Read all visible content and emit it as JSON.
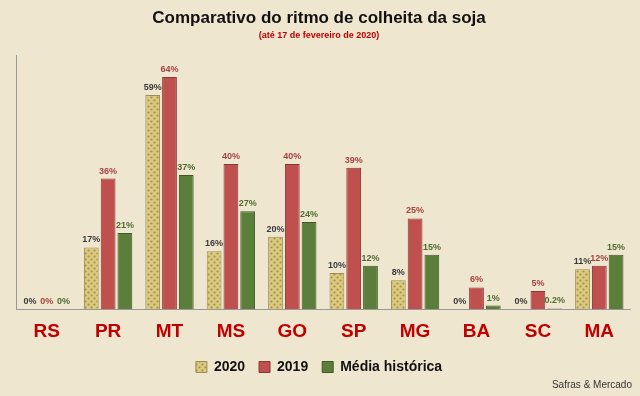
{
  "chart_data": {
    "type": "bar",
    "title": "Comparativo do ritmo de colheita da soja",
    "subtitle": "(até 17 de fevereiro de 2020)",
    "annotations": [
      "Safras & Mercado"
    ],
    "categories": [
      "RS",
      "PR",
      "MT",
      "MS",
      "GO",
      "SP",
      "MG",
      "BA",
      "SC",
      "MA"
    ],
    "series": [
      {
        "name": "2020",
        "color": "#dcc97a",
        "values": [
          0,
          17,
          59,
          16,
          20,
          10,
          8,
          0,
          0,
          11
        ],
        "value_labels": [
          "0%",
          "17%",
          "59%",
          "16%",
          "20%",
          "10%",
          "8%",
          "0%",
          "0%",
          "11%"
        ]
      },
      {
        "name": "2019",
        "color": "#c0504d",
        "values": [
          0,
          36,
          64,
          40,
          40,
          39,
          25,
          6,
          5,
          12
        ],
        "value_labels": [
          "0%",
          "36%",
          "64%",
          "40%",
          "40%",
          "39%",
          "25%",
          "6%",
          "5%",
          "12%"
        ]
      },
      {
        "name": "Média histórica",
        "color": "#5b7f3a",
        "values": [
          0,
          21,
          37,
          27,
          24,
          12,
          15,
          1,
          0.2,
          15
        ],
        "value_labels": [
          "0%",
          "21%",
          "37%",
          "27%",
          "24%",
          "12%",
          "15%",
          "1%",
          "0.2%",
          "15%"
        ]
      }
    ],
    "ylim": [
      0,
      70
    ],
    "grid": false,
    "legend": "bottom",
    "data_labels": true,
    "tick_labels": "x"
  }
}
